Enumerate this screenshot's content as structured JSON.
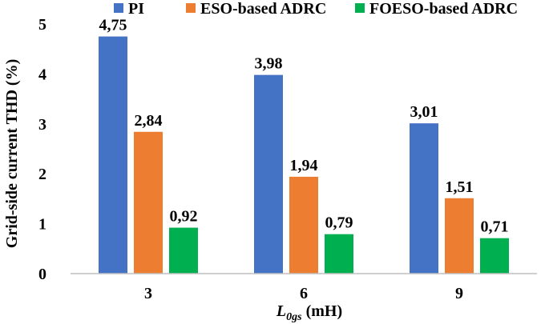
{
  "chart_data": {
    "type": "bar",
    "categories": [
      "3",
      "6",
      "9"
    ],
    "series": [
      {
        "name": "PI",
        "color": "#4472c4",
        "values": [
          4.75,
          3.98,
          3.01
        ],
        "labels": [
          "4,75",
          "3,98",
          "3,01"
        ]
      },
      {
        "name": "ESO-based ADRC",
        "color": "#ed7d31",
        "values": [
          2.84,
          1.94,
          1.51
        ],
        "labels": [
          "2,84",
          "1,94",
          "1,51"
        ]
      },
      {
        "name": "FOESO-based ADRC",
        "color": "#00b050",
        "values": [
          0.92,
          0.79,
          0.71
        ],
        "labels": [
          "0,92",
          "0,79",
          "0,71"
        ]
      }
    ],
    "xlabel_main": "L",
    "xlabel_sub": "0gs",
    "xlabel_unit": " (mH)",
    "ylabel": "Grid-side current THD (%)",
    "ylim": [
      0,
      5
    ],
    "yticks": [
      "0",
      "1",
      "2",
      "3",
      "4",
      "5"
    ],
    "grid": false,
    "legend_position": "top"
  }
}
